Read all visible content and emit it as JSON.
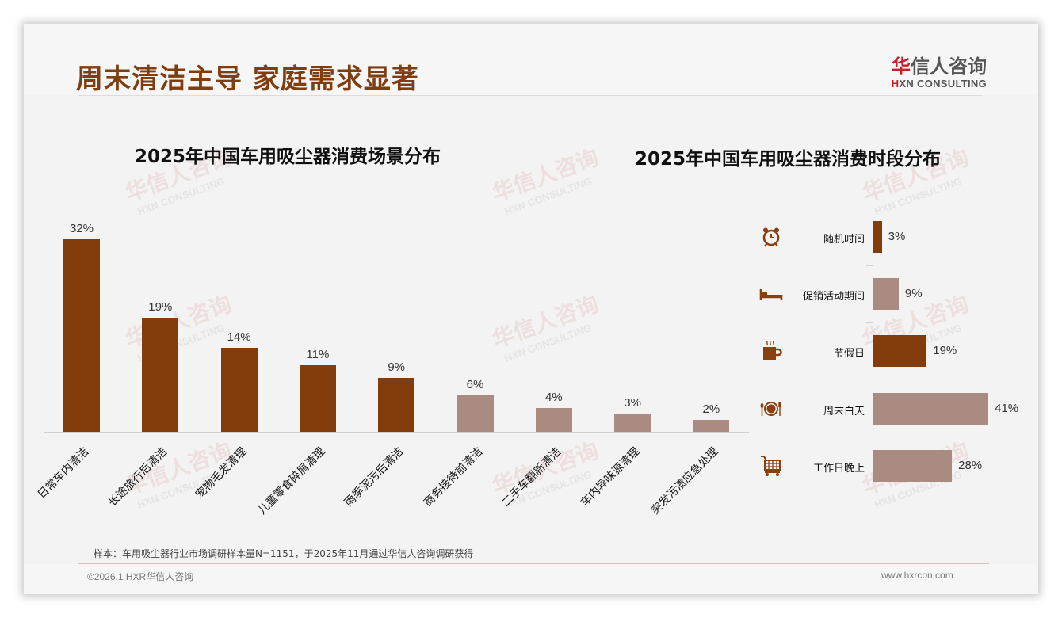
{
  "header": {
    "title": "周末清洁主导 家庭需求显著",
    "logo_cn_first": "华",
    "logo_cn_rest": "信人咨询",
    "logo_en_first": "H",
    "logo_en_rest": "XN CONSULTING"
  },
  "watermark": {
    "cn": "华信人咨询",
    "en": "HXN CONSULTING"
  },
  "colors": {
    "title": "#7f3d10",
    "bar_primary": "#833c0c",
    "bar_secondary": "#a98b81",
    "icon": "#8a3f0e"
  },
  "chart_data": [
    {
      "type": "bar",
      "title": "2025年中国车用吸尘器消费场景分布",
      "categories": [
        "日常车内清洁",
        "长途旅行后清洁",
        "宠物毛发清理",
        "儿童零食碎屑清理",
        "雨季泥污后清洁",
        "商务接待前清洁",
        "二手车翻新清洁",
        "车内异味源清理",
        "突发污渍应急处理"
      ],
      "values": [
        32,
        19,
        14,
        11,
        9,
        6,
        4,
        3,
        2
      ],
      "labels": [
        "32%",
        "19%",
        "14%",
        "11%",
        "9%",
        "6%",
        "4%",
        "3%",
        "2%"
      ],
      "highlight": [
        true,
        true,
        true,
        true,
        true,
        false,
        false,
        false,
        false
      ],
      "xlabel": "",
      "ylabel": "",
      "unit": "%",
      "grid": false,
      "legend": "none"
    },
    {
      "type": "bar",
      "orientation": "horizontal",
      "title": "2025年中国车用吸尘器消费时段分布",
      "categories": [
        "随机时间",
        "促销活动期间",
        "节假日",
        "周末白天",
        "工作日晚上"
      ],
      "values": [
        3,
        9,
        19,
        41,
        28
      ],
      "labels": [
        "3%",
        "9%",
        "19%",
        "41%",
        "28%"
      ],
      "icons": [
        "alarm-clock-icon",
        "bed-icon",
        "coffee-mug-icon",
        "plate-cutlery-icon",
        "shopping-cart-icon"
      ],
      "highlight": [
        true,
        false,
        true,
        false,
        false
      ],
      "xlabel": "",
      "ylabel": "",
      "unit": "%",
      "grid": false,
      "legend": "none"
    }
  ],
  "footer": {
    "note": "样本：车用吸尘器行业市场调研样本量N=1151，于2025年11月通过华信人咨询调研获得",
    "copyright": "©2026.1 HXR华信人咨询",
    "website": "www.hxrcon.com"
  }
}
